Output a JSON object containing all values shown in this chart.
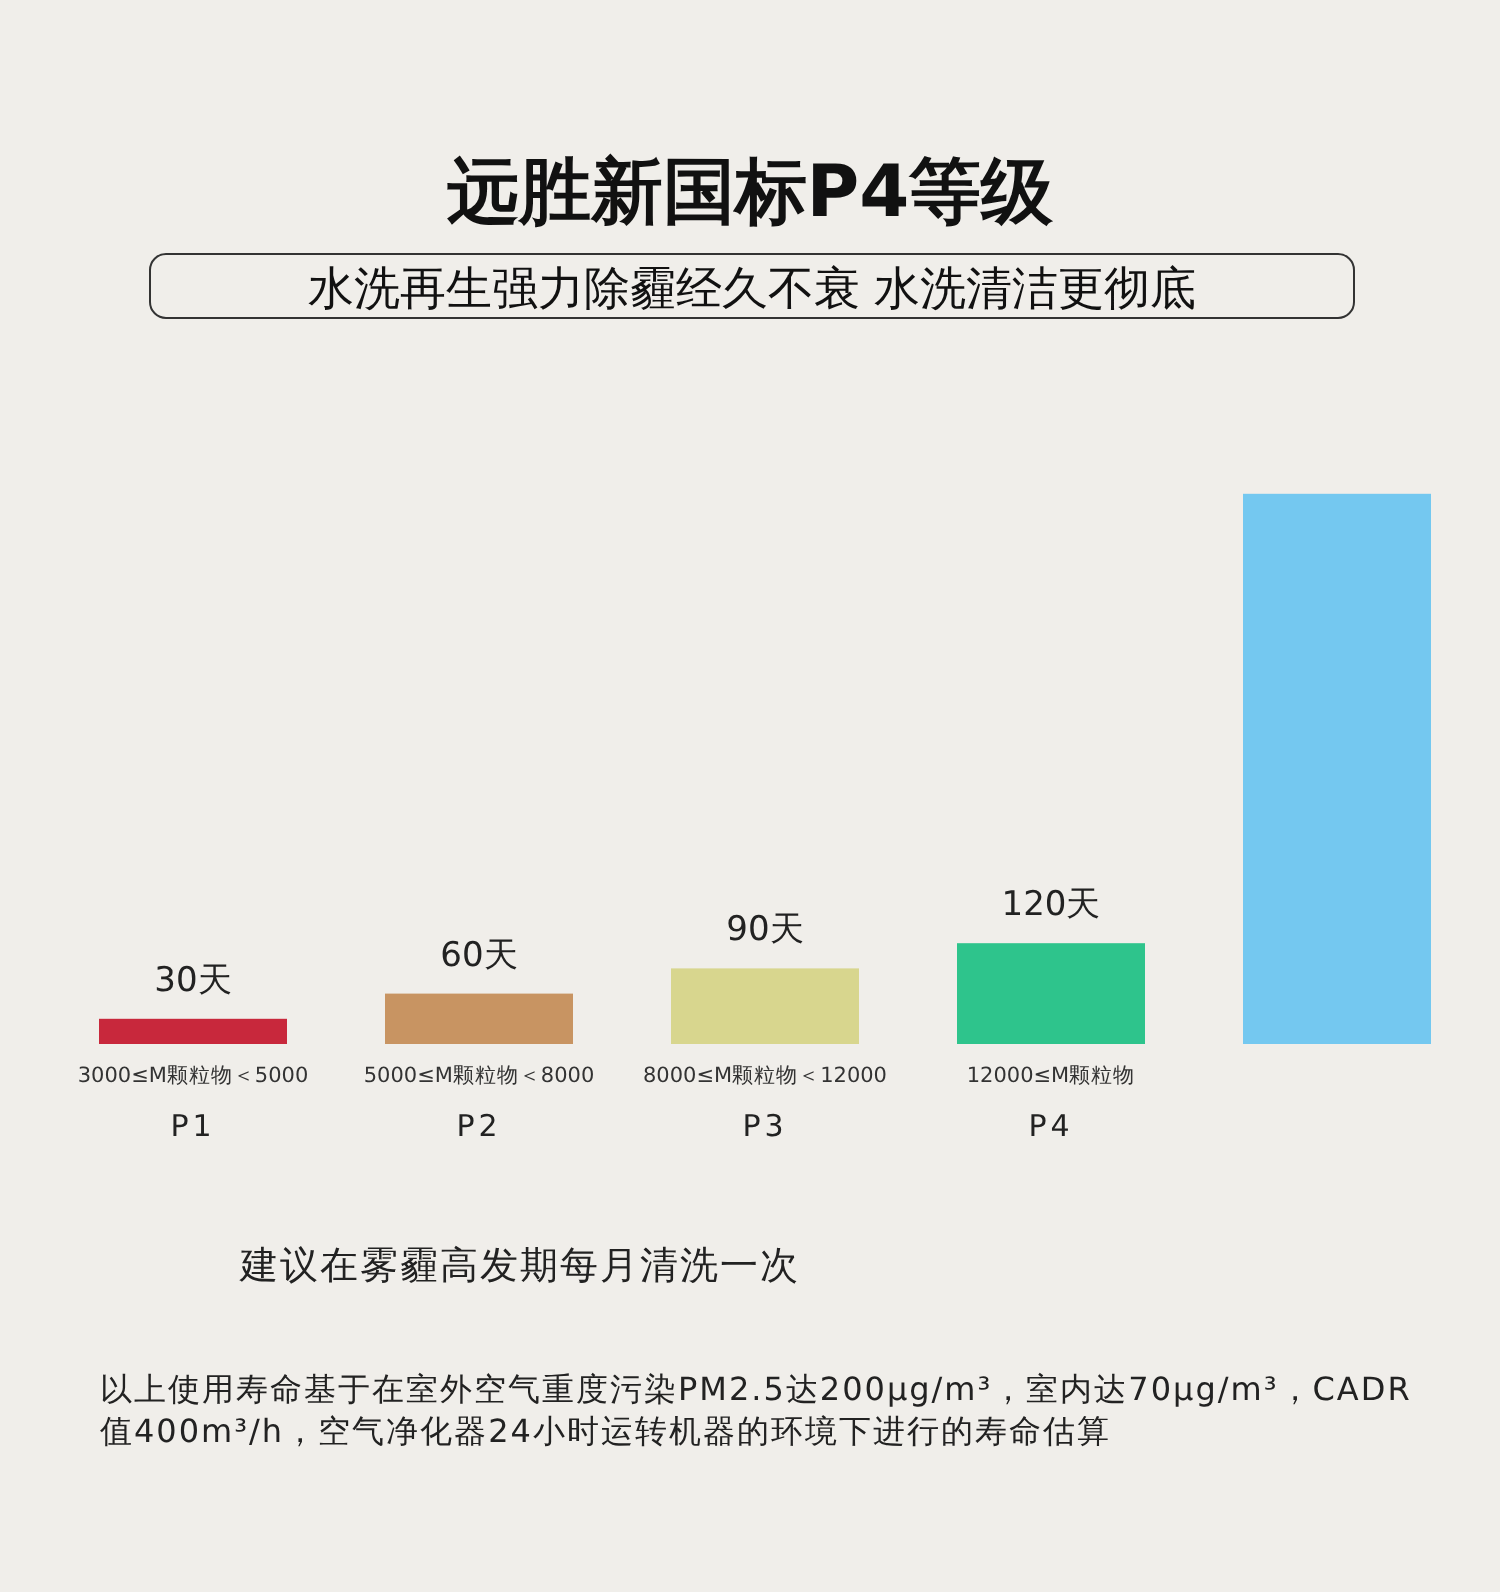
{
  "chart_data": {
    "type": "bar",
    "title": "远胜新国标P4等级",
    "subtitle": "水洗再生强力除霾经久不衰 水洗清洁更彻底",
    "categories": [
      "P1",
      "P2",
      "P3",
      "P4",
      null
    ],
    "values": [
      30,
      60,
      90,
      120,
      655
    ],
    "colors": [
      "#c8283c",
      "#c89462",
      "#d8d68e",
      "#2ec48c",
      "#74c8f0"
    ],
    "value_labels": [
      "30天",
      "60天",
      "90天",
      "120天",
      null
    ],
    "annotations": [
      "3000≤M颗粒物＜5000",
      "5000≤M颗粒物＜8000",
      "8000≤M颗粒物＜12000",
      "12000≤M颗粒物",
      "建议在雾霾高发期每月清洗一次",
      "以上使用寿命基于在室外空气重度污染PM2.5达200μg/m³，室内达70μg/m³，CADR值400m³/h，空气净化器24小时运转机器的环境下进行的寿命估算"
    ]
  }
}
